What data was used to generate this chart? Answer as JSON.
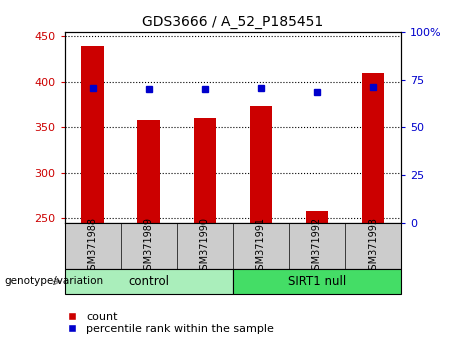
{
  "title": "GDS3666 / A_52_P185451",
  "samples": [
    "GSM371988",
    "GSM371989",
    "GSM371990",
    "GSM371991",
    "GSM371992",
    "GSM371993"
  ],
  "counts": [
    440,
    358,
    360,
    374,
    258,
    410
  ],
  "percentile_ranks": [
    70.5,
    70.0,
    70.0,
    70.5,
    68.5,
    71.0
  ],
  "ylim_left": [
    245,
    455
  ],
  "ylim_right": [
    0,
    100
  ],
  "yticks_left": [
    250,
    300,
    350,
    400,
    450
  ],
  "yticks_right": [
    0,
    25,
    50,
    75,
    100
  ],
  "bar_color": "#cc0000",
  "dot_color": "#0000cc",
  "bar_width": 0.4,
  "groups": [
    {
      "label": "control",
      "indices": [
        0,
        1,
        2
      ],
      "color": "#aaeebb"
    },
    {
      "label": "SIRT1 null",
      "indices": [
        3,
        4,
        5
      ],
      "color": "#44dd66"
    }
  ],
  "group_row_label": "genotype/variation",
  "legend_count_label": "count",
  "legend_percentile_label": "percentile rank within the sample",
  "background_color": "#ffffff",
  "plot_bg_color": "#ffffff",
  "tick_label_color_left": "#cc0000",
  "tick_label_color_right": "#0000cc",
  "xlabel_row_bg": "#cccccc",
  "ytick_right_labels": [
    "0",
    "25",
    "50",
    "75",
    "100%"
  ]
}
